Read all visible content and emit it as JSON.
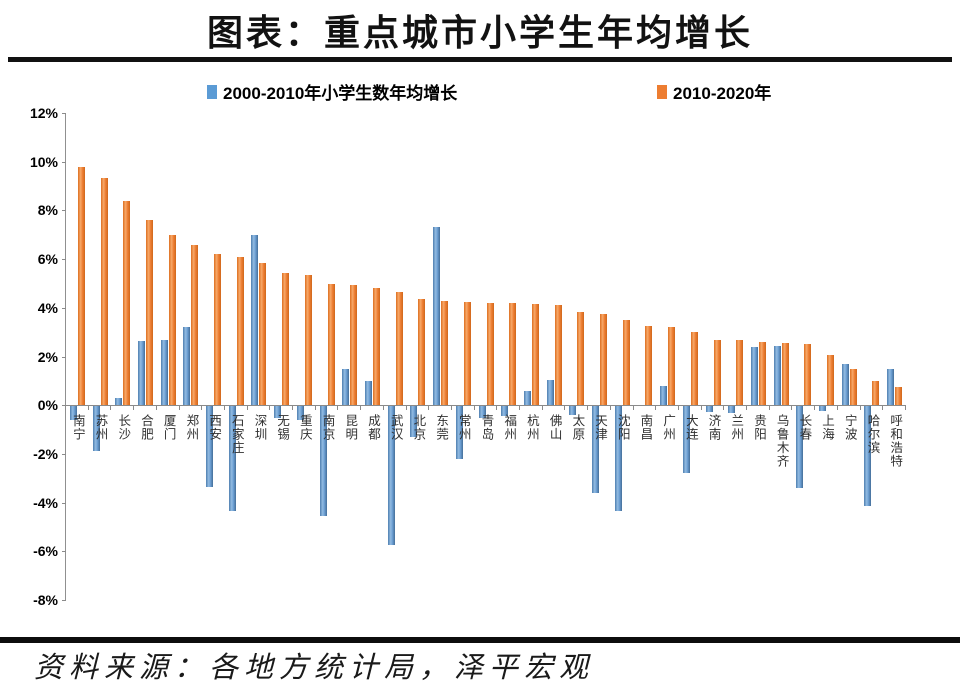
{
  "title": "图表：重点城市小学生年均增长",
  "legend": {
    "items": [
      {
        "label": "2000-2010年小学生数年均增长",
        "color": "#5B9BD5"
      },
      {
        "label": "2010-2020年",
        "color": "#ED7D31"
      }
    ]
  },
  "source": "资料来源：各地方统计局，泽平宏观",
  "chart_data": {
    "type": "bar",
    "title": "图表：重点城市小学生年均增长",
    "unit": "percent",
    "categories": [
      "南宁",
      "苏州",
      "长沙",
      "合肥",
      "厦门",
      "郑州",
      "西安",
      "石家庄",
      "深圳",
      "无锡",
      "重庆",
      "南京",
      "昆明",
      "成都",
      "武汉",
      "北京",
      "东莞",
      "常州",
      "青岛",
      "福州",
      "杭州",
      "佛山",
      "太原",
      "天津",
      "沈阳",
      "南昌",
      "广州",
      "大连",
      "济南",
      "兰州",
      "贵阳",
      "乌鲁木齐",
      "长春",
      "上海",
      "宁波",
      "哈尔滨",
      "呼和浩特"
    ],
    "series": [
      {
        "name": "2000-2010年小学生数年均增长",
        "color": "#5B9BD5",
        "values": [
          -0.55,
          -1.85,
          0.3,
          2.65,
          2.7,
          3.2,
          -3.3,
          -4.3,
          7.0,
          -0.5,
          -0.55,
          -4.5,
          1.5,
          1.0,
          -5.7,
          -1.25,
          7.3,
          -2.15,
          -0.5,
          -0.4,
          0.6,
          1.05,
          -0.35,
          -3.55,
          -4.3,
          0,
          0.8,
          -2.75,
          -0.25,
          -0.3,
          2.4,
          2.45,
          -3.35,
          -0.2,
          1.7,
          -4.1,
          1.5
        ]
      },
      {
        "name": "2010-2020年",
        "color": "#ED7D31",
        "values": [
          9.8,
          9.35,
          8.4,
          7.6,
          7.0,
          6.6,
          6.2,
          6.1,
          5.85,
          5.45,
          5.35,
          5.0,
          4.95,
          4.8,
          4.65,
          4.35,
          4.3,
          4.25,
          4.2,
          4.2,
          4.15,
          4.1,
          3.85,
          3.75,
          3.5,
          3.25,
          3.2,
          3.0,
          2.7,
          2.7,
          2.6,
          2.55,
          2.5,
          2.05,
          1.5,
          1.0,
          0.75
        ]
      }
    ],
    "ylim": [
      -8,
      12
    ],
    "y_tick_labels": [
      "12%",
      "10%",
      "8%",
      "6%",
      "4%",
      "2%",
      "0%",
      "-2%",
      "-4%",
      "-6%",
      "-8%"
    ],
    "y_tick_values": [
      12,
      10,
      8,
      6,
      4,
      2,
      0,
      -2,
      -4,
      -6,
      -8
    ],
    "xlabel": "",
    "ylabel": "",
    "grid": false,
    "legend_position": "top"
  }
}
